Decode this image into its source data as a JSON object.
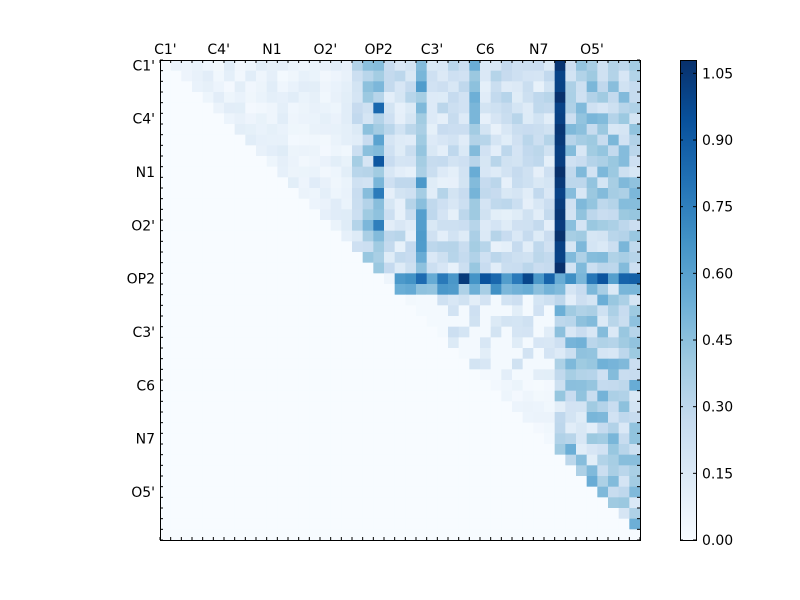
{
  "chart_data": {
    "type": "heatmap",
    "title": "",
    "xlabel": "",
    "ylabel": "",
    "grid": false,
    "x_tick_labels": [
      "C1'",
      "C4'",
      "N1",
      "O2'",
      "OP2",
      "C3'",
      "C6",
      "N7",
      "O5'"
    ],
    "y_tick_labels": [
      "C1'",
      "C4'",
      "N1",
      "O2'",
      "OP2",
      "C3'",
      "C6",
      "N7",
      "O5'"
    ],
    "n_atoms": 45,
    "tick_step": 5,
    "triangle": "upper",
    "colormap": "Blues",
    "vmin": 0.0,
    "vmax": 1.08,
    "colorbar_ticks": [
      "0.00",
      "0.15",
      "0.30",
      "0.45",
      "0.60",
      "0.75",
      "0.90",
      "1.05"
    ],
    "colorbar_tick_values": [
      0.0,
      0.15,
      0.3,
      0.45,
      0.6,
      0.75,
      0.9,
      1.05
    ],
    "colors": {
      "low": "#f7fbff",
      "high": "#08306b"
    },
    "approx_values": {
      "default": 0.03,
      "column_37_rows_0_to_19": 1.05,
      "row_20_cols_22_to_44": 0.85,
      "column_20_rows_0_to_16": 0.65,
      "column_24_rows_0_to_19": 0.5,
      "column_29_rows_0_to_19": 0.45,
      "upper_block_rows_0_to_19_cols_24_to_44": 0.3,
      "lower_block_rows_21_to_44_cols_37_to_44": 0.35,
      "lower_block_rows_21_to_44_cols_21_to_36": 0.12
    }
  }
}
